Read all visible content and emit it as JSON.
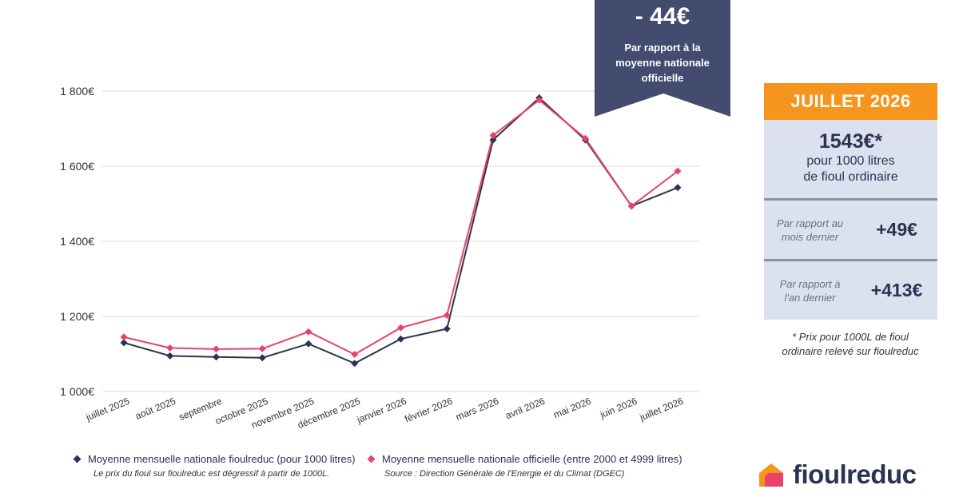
{
  "chart_data": {
    "type": "line",
    "categories": [
      "juillet 2025",
      "août 2025",
      "septembre",
      "octobre 2025",
      "novembre 2025",
      "décembre 2025",
      "janvier 2026",
      "février 2026",
      "mars 2026",
      "avril 2026",
      "mai 2026",
      "juin 2026",
      "juillet 2026"
    ],
    "series": [
      {
        "name": "Moyenne mensuelle nationale fioulreduc (pour 1000 litres)",
        "color": "#2b3352",
        "marker": "diamond",
        "values": [
          1130,
          1095,
          1092,
          1090,
          1127,
          1075,
          1140,
          1167,
          1670,
          1782,
          1670,
          1494,
          1543
        ]
      },
      {
        "name": "Moyenne mensuelle nationale officielle (entre 2000 et 4999 litres)",
        "color": "#e8436a",
        "marker": "diamond",
        "values": [
          1145,
          1116,
          1113,
          1114,
          1159,
          1099,
          1170,
          1203,
          1682,
          1776,
          1674,
          1494,
          1587
        ]
      }
    ],
    "yticks": [
      "1 000€",
      "1 200€",
      "1 400€",
      "1 600€",
      "1 800€"
    ],
    "ytick_values": [
      1000,
      1200,
      1400,
      1600,
      1800
    ],
    "ylim": [
      1000,
      1850
    ],
    "grid": true,
    "legend_position": "bottom"
  },
  "callout": {
    "value": "- 44€",
    "text": "Par rapport à la moyenne nationale officielle",
    "color": "#434c6e"
  },
  "panel": {
    "header": "JUILLET 2026",
    "price": "1543€*",
    "price_desc": "pour 1000 litres\nde fioul ordinaire",
    "rows": [
      {
        "label": "Par rapport au\nmois dernier",
        "value": "+49€"
      },
      {
        "label": "Par rapport à\nl'an dernier",
        "value": "+413€"
      }
    ],
    "footnote": "* Prix pour 1000L de fioul\nordinaire relevé sur fioulreduc",
    "accent": "#f7941d"
  },
  "legend": {
    "items": [
      {
        "label": "Moyenne mensuelle nationale fioulreduc (pour 1000 litres)",
        "note": "Le prix du fioul sur fioulreduc est dégressif à partir de 1000L."
      },
      {
        "label": "Moyenne mensuelle nationale officielle (entre 2000 et 4999 litres)",
        "note": "Source : Direction Générale de l'Energie et du Climat (DGEC)"
      }
    ]
  },
  "logo": {
    "text": "fioulreduc",
    "icon": "house-logo-icon"
  }
}
